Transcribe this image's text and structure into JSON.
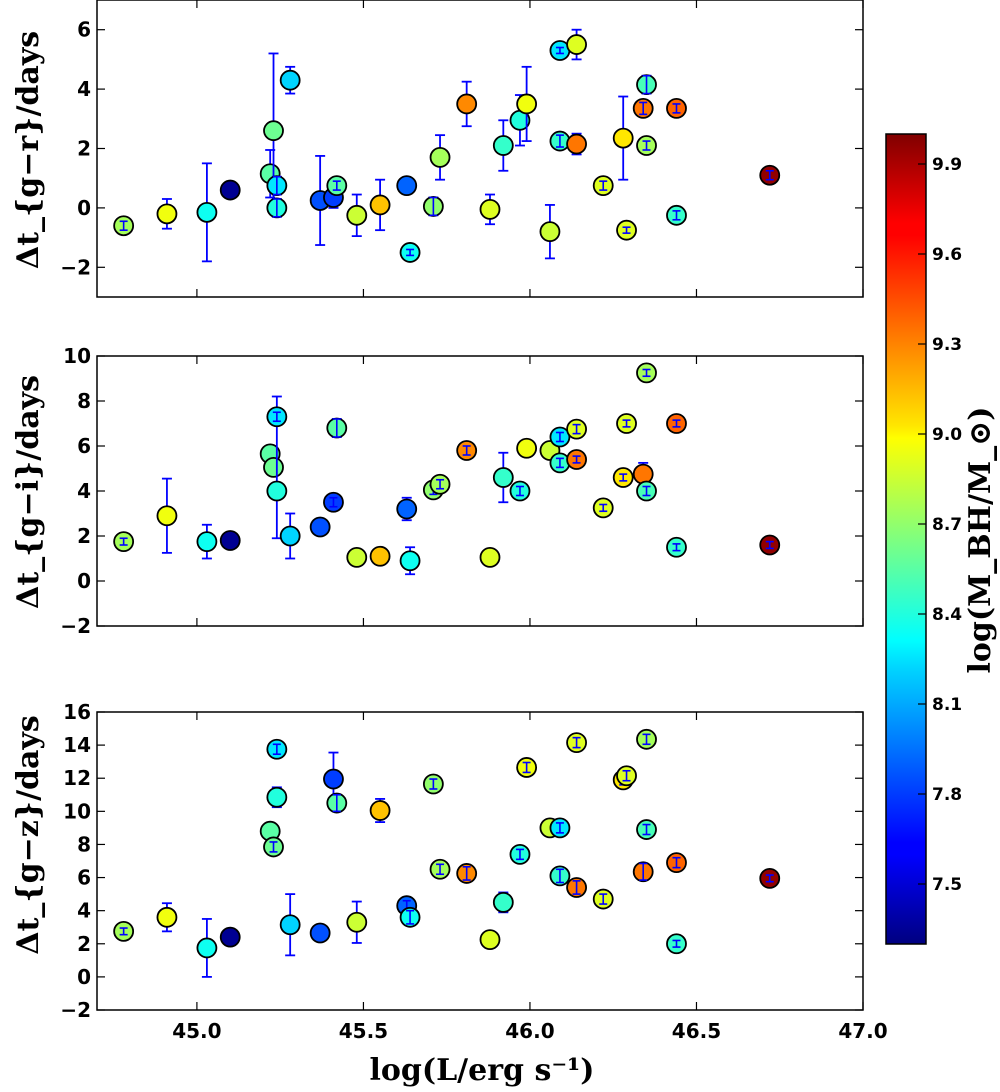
{
  "chart_data": {
    "type": "scatter",
    "x": [
      44.78,
      44.91,
      45.03,
      45.1,
      45.22,
      45.23,
      45.24,
      45.24,
      45.28,
      45.37,
      45.41,
      45.42,
      45.48,
      45.55,
      45.63,
      45.64,
      45.71,
      45.73,
      45.81,
      45.88,
      45.92,
      45.97,
      45.99,
      46.06,
      46.09,
      46.09,
      46.14,
      46.14,
      46.22,
      46.28,
      46.29,
      46.34,
      46.35,
      46.35,
      46.44,
      46.44,
      46.72
    ],
    "log_mbh": [
      8.75,
      8.95,
      8.35,
      7.35,
      8.55,
      8.6,
      8.4,
      8.25,
      8.2,
      7.85,
      7.8,
      8.55,
      8.85,
      9.15,
      7.9,
      8.35,
      8.7,
      8.75,
      9.3,
      8.9,
      8.45,
      8.4,
      8.95,
      8.85,
      8.45,
      8.25,
      9.35,
      8.9,
      8.9,
      9.05,
      8.9,
      9.35,
      8.75,
      8.5,
      9.4,
      8.45,
      9.95
    ],
    "panels": [
      {
        "ylabel": "Δt_{g−r}/days",
        "ylim": [
          -3,
          7
        ],
        "yticks": [
          "−2",
          "0",
          "2",
          "4",
          "6"
        ],
        "ytick_values": [
          -2,
          0,
          2,
          4,
          6
        ],
        "y": [
          -0.6,
          -0.2,
          -0.15,
          0.6,
          1.15,
          2.6,
          0.0,
          0.75,
          4.3,
          0.25,
          0.35,
          0.75,
          -0.25,
          0.1,
          0.75,
          -1.5,
          0.05,
          1.7,
          3.5,
          -0.05,
          2.1,
          2.95,
          3.5,
          -0.8,
          2.25,
          5.3,
          2.15,
          5.5,
          0.75,
          2.35,
          -0.75,
          3.35,
          2.1,
          4.15,
          3.35,
          -0.25,
          1.1
        ],
        "err": [
          0.15,
          0.5,
          1.65,
          0,
          0.8,
          2.6,
          0.3,
          0.3,
          0.45,
          1.5,
          0.35,
          0.15,
          0.7,
          0.85,
          0,
          0.1,
          0.3,
          0.75,
          0.75,
          0.5,
          0.85,
          0.85,
          1.25,
          0.9,
          0.2,
          0.1,
          0.35,
          0.5,
          0.15,
          1.4,
          0.1,
          0.2,
          0.15,
          0.3,
          0.15,
          0.15,
          0.15
        ]
      },
      {
        "ylabel": "Δt_{g−i}/days",
        "ylim": [
          -2,
          10
        ],
        "yticks": [
          "−2",
          "0",
          "2",
          "4",
          "6",
          "8",
          "10"
        ],
        "ytick_values": [
          -2,
          0,
          2,
          4,
          6,
          8,
          10
        ],
        "y": [
          1.75,
          2.9,
          1.75,
          1.8,
          5.65,
          5.05,
          4.0,
          7.3,
          2.0,
          2.4,
          3.5,
          6.8,
          1.05,
          1.1,
          3.2,
          0.9,
          4.05,
          4.3,
          5.8,
          1.05,
          4.6,
          4.0,
          5.9,
          5.8,
          5.25,
          6.4,
          5.4,
          6.75,
          3.25,
          4.6,
          7.0,
          4.75,
          9.25,
          4.0,
          7.0,
          1.5,
          1.6
        ],
        "err": [
          0.15,
          1.65,
          0.75,
          0,
          0,
          0,
          0.2,
          0.2,
          1.0,
          0,
          0.2,
          0.4,
          0,
          0,
          0.5,
          0.6,
          0.2,
          0.2,
          0.2,
          0,
          1.1,
          0.2,
          0,
          0,
          0.2,
          0.2,
          0.15,
          0.2,
          0.15,
          0.15,
          0.15,
          0.5,
          0.15,
          0.2,
          0.15,
          0.15,
          0.15
        ],
        "err_extra": {
          "index": 6,
          "lo": 1.9,
          "hi": 8.2
        }
      },
      {
        "ylabel": "Δt_{g−z}/days",
        "ylim": [
          -2,
          16
        ],
        "yticks": [
          "−2",
          "0",
          "2",
          "4",
          "6",
          "8",
          "10",
          "12",
          "14",
          "16"
        ],
        "ytick_values": [
          -2,
          0,
          2,
          4,
          6,
          8,
          10,
          12,
          14,
          16
        ],
        "y": [
          2.75,
          3.6,
          1.75,
          2.4,
          8.8,
          7.85,
          10.85,
          13.75,
          3.15,
          2.65,
          11.95,
          10.5,
          3.3,
          10.05,
          4.3,
          3.6,
          11.65,
          6.5,
          6.25,
          2.25,
          4.5,
          7.4,
          12.65,
          9.0,
          6.1,
          9.0,
          5.4,
          14.15,
          4.7,
          11.9,
          12.15,
          6.35,
          14.35,
          8.9,
          6.9,
          2.0,
          5.95
        ],
        "err": [
          0.2,
          0.85,
          1.75,
          0,
          0,
          0.3,
          0.6,
          0.3,
          1.85,
          0,
          1.6,
          0.5,
          1.25,
          0.7,
          0.3,
          0.4,
          0.3,
          0.3,
          0.4,
          0,
          0.6,
          0.3,
          0.3,
          0,
          0.4,
          0.3,
          0.4,
          0.3,
          0.3,
          0.3,
          0.3,
          0.5,
          0.3,
          0.3,
          0.3,
          0.2,
          0.2
        ]
      }
    ],
    "xlabel": "log(L/erg s⁻¹)",
    "xlim": [
      44.7,
      47.0
    ],
    "xticks": [
      "45.0",
      "45.5",
      "46.0",
      "46.5",
      "47.0"
    ],
    "xtick_values": [
      45.0,
      45.5,
      46.0,
      46.5,
      47.0
    ],
    "colorbar": {
      "label": "log(M_BH/M_⊙)",
      "range": [
        7.3,
        10.0
      ],
      "ticks": [
        "7.5",
        "7.8",
        "8.1",
        "8.4",
        "8.7",
        "9.0",
        "9.3",
        "9.6",
        "9.9"
      ],
      "tick_values": [
        7.5,
        7.8,
        8.1,
        8.4,
        8.7,
        9.0,
        9.3,
        9.6,
        9.9
      ],
      "colormap": "jet"
    },
    "errorbar_color": "#0000ff",
    "marker_edge_color": "#000000"
  }
}
